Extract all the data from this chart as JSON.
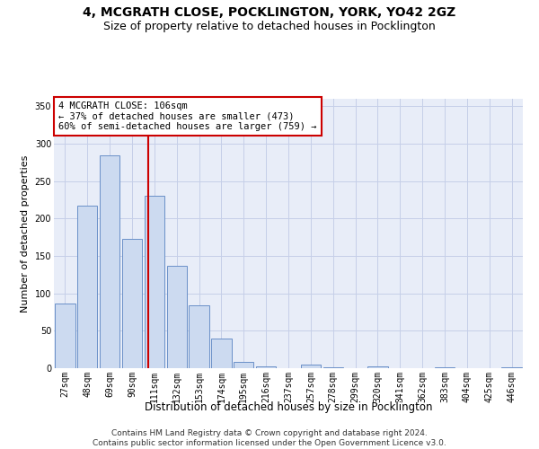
{
  "title1": "4, MCGRATH CLOSE, POCKLINGTON, YORK, YO42 2GZ",
  "title2": "Size of property relative to detached houses in Pocklington",
  "xlabel": "Distribution of detached houses by size in Pocklington",
  "ylabel": "Number of detached properties",
  "categories": [
    "27sqm",
    "48sqm",
    "69sqm",
    "90sqm",
    "111sqm",
    "132sqm",
    "153sqm",
    "174sqm",
    "195sqm",
    "216sqm",
    "237sqm",
    "257sqm",
    "278sqm",
    "299sqm",
    "320sqm",
    "341sqm",
    "362sqm",
    "383sqm",
    "404sqm",
    "425sqm",
    "446sqm"
  ],
  "bar_heights": [
    86,
    217,
    284,
    173,
    231,
    137,
    84,
    40,
    9,
    3,
    0,
    5,
    1,
    0,
    2,
    0,
    0,
    1,
    0,
    0,
    1
  ],
  "bar_color": "#ccdaf0",
  "bar_edge_color": "#6a90c8",
  "vline_x": 3.73,
  "vline_color": "#cc0000",
  "annotation_text": "4 MCGRATH CLOSE: 106sqm\n← 37% of detached houses are smaller (473)\n60% of semi-detached houses are larger (759) →",
  "annotation_box_color": "#ffffff",
  "annotation_box_edge": "#cc0000",
  "ylim": [
    0,
    360
  ],
  "yticks": [
    0,
    50,
    100,
    150,
    200,
    250,
    300,
    350
  ],
  "grid_color": "#c5cfe8",
  "bg_color": "#e8edf8",
  "footnote": "Contains HM Land Registry data © Crown copyright and database right 2024.\nContains public sector information licensed under the Open Government Licence v3.0.",
  "title1_fontsize": 10,
  "title2_fontsize": 9,
  "xlabel_fontsize": 8.5,
  "ylabel_fontsize": 8,
  "tick_fontsize": 7,
  "annot_fontsize": 7.5,
  "footnote_fontsize": 6.5
}
